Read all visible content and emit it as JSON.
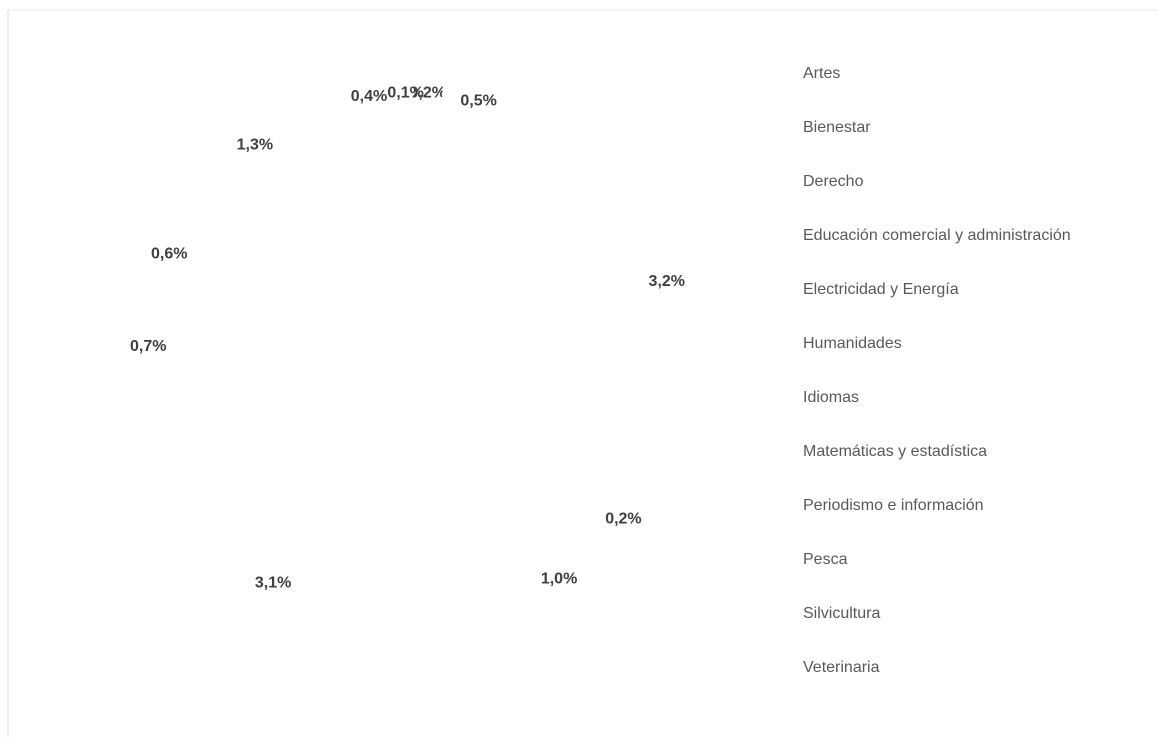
{
  "chart_data": {
    "type": "pie",
    "categories": [
      "Artes",
      "Bienestar",
      "Derecho",
      "Educación comercial y administración",
      "Electricidad y Energía",
      "Humanidades",
      "Idiomas",
      "Matemáticas y estadística",
      "Periodismo e información",
      "Pesca",
      "Silvicultura",
      "Veterinaria"
    ],
    "values": [
      0.2,
      0.5,
      3.2,
      0.2,
      1.0,
      3.1,
      0.7,
      0.6,
      1.3,
      0.4,
      0.1,
      null
    ],
    "value_labels": [
      "0,2%",
      "0,5%",
      "3,2%",
      "0,2%",
      "1,0%",
      "3,1%",
      "0,7%",
      "0,6%",
      "1,3%",
      "0,4%",
      "0,1%",
      null
    ],
    "color": "#ffffff"
  }
}
